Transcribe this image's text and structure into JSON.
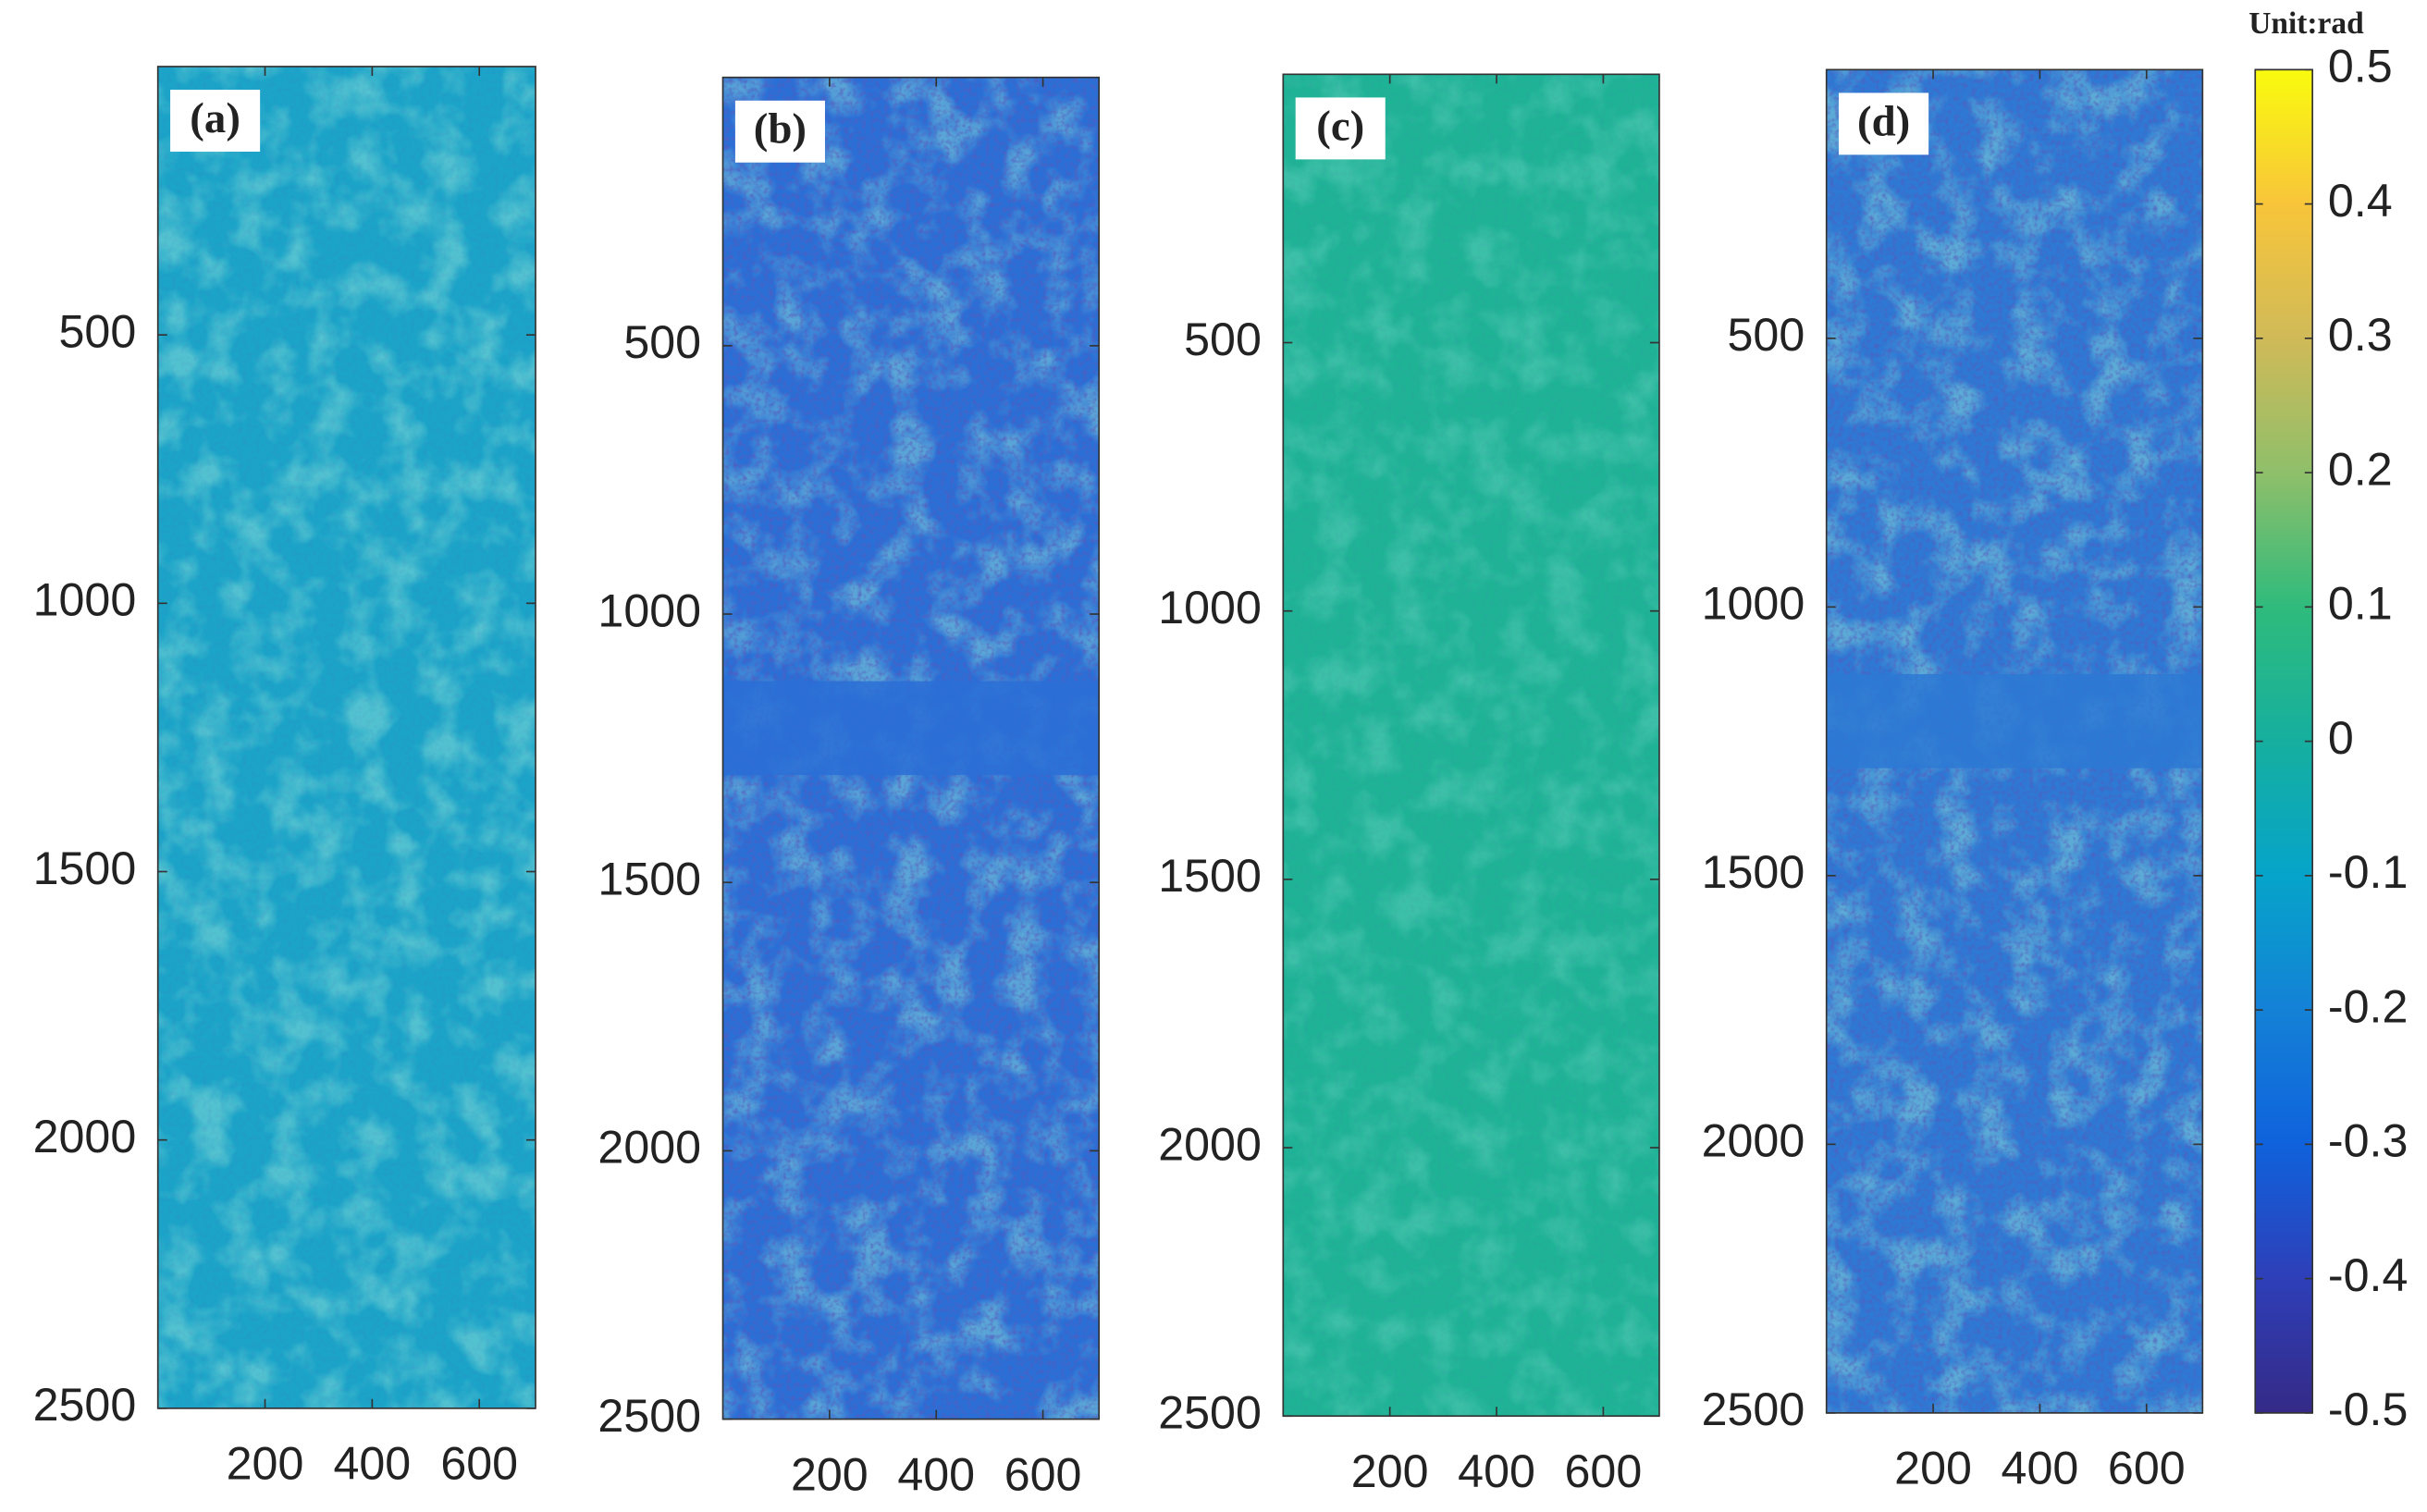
{
  "chart_data": [
    {
      "type": "heatmap",
      "label": "(a)",
      "color": "#1ba4c8",
      "xlim": [
        0,
        705
      ],
      "ylim": [
        0,
        2500
      ],
      "yreverse": true,
      "xticks": [
        200,
        400,
        600
      ],
      "yticks": [
        500,
        1000,
        1500,
        2000,
        2500
      ]
    },
    {
      "type": "heatmap",
      "label": "(b)",
      "color": "#2a6fd6",
      "xlim": [
        0,
        705
      ],
      "ylim": [
        0,
        2500
      ],
      "yreverse": true,
      "xticks": [
        200,
        400,
        600
      ],
      "yticks": [
        500,
        1000,
        1500,
        2000,
        2500
      ]
    },
    {
      "type": "heatmap",
      "label": "(c)",
      "color": "#1fb396",
      "xlim": [
        0,
        705
      ],
      "ylim": [
        0,
        2500
      ],
      "yreverse": true,
      "xticks": [
        200,
        400,
        600
      ],
      "yticks": [
        500,
        1000,
        1500,
        2000,
        2500
      ]
    },
    {
      "type": "heatmap",
      "label": "(d)",
      "color": "#2d79d4",
      "xlim": [
        0,
        705
      ],
      "ylim": [
        0,
        2500
      ],
      "yreverse": true,
      "xticks": [
        200,
        400,
        600
      ],
      "yticks": [
        500,
        1000,
        1500,
        2000,
        2500
      ]
    }
  ],
  "colorbar": {
    "title": "Unit:rad",
    "lim": [
      -0.5,
      0.5
    ],
    "ticks": [
      0.5,
      0.4,
      0.3,
      0.2,
      0.1,
      0,
      -0.1,
      -0.2,
      -0.3,
      -0.4,
      -0.5
    ]
  }
}
